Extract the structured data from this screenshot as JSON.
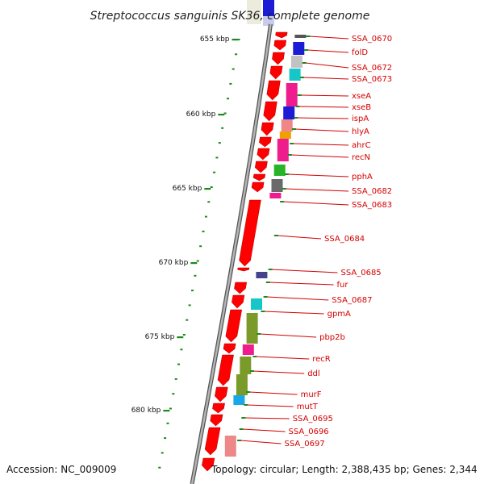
{
  "header": {
    "title": "Streptococcus sanguinis SK36, complete genome"
  },
  "footer": {
    "accession": "Accession: NC_009009",
    "topology": "Topology: circular; Length: 2,388,435 bp; Genes: 2,344"
  },
  "scale_labels": [
    "655 kbp",
    "660 kbp",
    "665 kbp",
    "670 kbp",
    "675 kbp",
    "680 kbp"
  ],
  "genes": [
    {
      "label": "SSA_0670",
      "color": "#555555"
    },
    {
      "label": "folD",
      "color": "#1c1cd6"
    },
    {
      "label": "SSA_0672",
      "color": "#c2c2c2"
    },
    {
      "label": "SSA_0673",
      "color": "#17c7c7"
    },
    {
      "label": "xseA",
      "color": "#ee1c8c"
    },
    {
      "label": "xseB",
      "color": "#1c1cd6"
    },
    {
      "label": "ispA",
      "color": "#ee8888"
    },
    {
      "label": "hlyA",
      "color": "#f0a000"
    },
    {
      "label": "ahrC",
      "color": "#ee1c8c"
    },
    {
      "label": "recN",
      "color": "#ee1c8c"
    },
    {
      "label": "pphA",
      "color": "#28b428"
    },
    {
      "label": "SSA_0682",
      "color": "#6a6a6a"
    },
    {
      "label": "SSA_0683",
      "color": "#ee1c8c"
    },
    {
      "label": "SSA_0684",
      "color": ""
    },
    {
      "label": "SSA_0685",
      "color": "#44448a"
    },
    {
      "label": "fur",
      "color": ""
    },
    {
      "label": "SSA_0687",
      "color": "#17c7c7"
    },
    {
      "label": "gpmA",
      "color": ""
    },
    {
      "label": "pbp2b",
      "color": "#7a9a2a"
    },
    {
      "label": "recR",
      "color": "#ee1c8c"
    },
    {
      "label": "ddl",
      "color": "#7a9a2a"
    },
    {
      "label": "murF",
      "color": "#7a9a2a"
    },
    {
      "label": "mutT",
      "color": "#18a8e8"
    },
    {
      "label": "SSA_0695",
      "color": ""
    },
    {
      "label": "SSA_0696",
      "color": ""
    },
    {
      "label": "SSA_0697",
      "color": "#ee8888"
    }
  ],
  "colors": {
    "arrow": "#ff0000",
    "backbone": "#888888",
    "tick": "#1a8a1a",
    "leader": "#d40000"
  }
}
